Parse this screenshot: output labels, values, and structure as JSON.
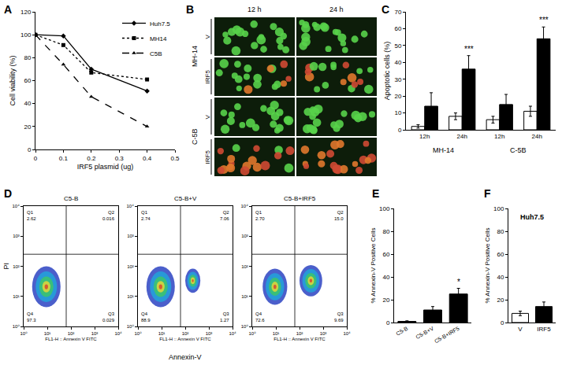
{
  "chart_data": [
    {
      "panel_label": "A",
      "type": "line",
      "x": [
        0,
        0.1,
        0.2,
        0.4
      ],
      "xlabel": "IRF5 plasmid (ug)",
      "ylabel": "Cell viability (%)",
      "xlim": [
        0,
        0.5
      ],
      "xticks": [
        0,
        0.1,
        0.2,
        0.3,
        0.4,
        0.5
      ],
      "ylim": [
        0,
        120
      ],
      "yticks": [
        0,
        20,
        40,
        60,
        80,
        100,
        120
      ],
      "legend": "upper right",
      "series": [
        {
          "name": "Huh7.5",
          "color": "#000000",
          "values": [
            100,
            99,
            70,
            51
          ],
          "line_style": "solid",
          "marker": "diamond"
        },
        {
          "name": "MH14",
          "color": "#000000",
          "values": [
            100,
            91,
            67,
            61
          ],
          "line_style": "dot",
          "marker": "square"
        },
        {
          "name": "C5B",
          "color": "#000000",
          "values": [
            100,
            74,
            46,
            20
          ],
          "line_style": "dash",
          "marker": "triangle-up"
        }
      ]
    },
    {
      "panel_label": "C",
      "type": "bar",
      "categories": [
        "12h",
        "24h",
        "12h",
        "24h"
      ],
      "groups": [
        "MH-14",
        "MH-14",
        "C-5B",
        "C-5B"
      ],
      "ylabel": "Apoptotic cells (%)",
      "ylim": [
        0,
        70
      ],
      "yticks": [
        0,
        10,
        20,
        30,
        40,
        50,
        60,
        70
      ],
      "series": [
        {
          "color": "#ffffff",
          "values": [
            2,
            8,
            6,
            11
          ],
          "errors": [
            1,
            2,
            2,
            3
          ]
        },
        {
          "color": "#000000",
          "values": [
            14,
            36,
            15,
            54
          ],
          "errors": [
            8,
            8,
            6,
            7
          ]
        }
      ],
      "annotations": [
        {
          "index": 1,
          "text": "***"
        },
        {
          "index": 3,
          "text": "***"
        }
      ]
    },
    {
      "panel_label": "D",
      "type": "scatter",
      "log": true,
      "xlabel": "Annexin-V",
      "ylabel": "PI",
      "xlim": [
        1,
        10000
      ],
      "ylim": [
        1,
        10000
      ],
      "xticks": [
        {
          "value": 1,
          "label": "10⁰"
        },
        {
          "value": 10,
          "label": "10¹"
        },
        {
          "value": 100,
          "label": "10²"
        },
        {
          "value": 1000,
          "label": "10³"
        },
        {
          "value": 10000,
          "label": "10⁴"
        }
      ],
      "yticks": [
        {
          "value": 1,
          "label": "10⁰"
        },
        {
          "value": 10,
          "label": "10¹"
        },
        {
          "value": 100,
          "label": "10²"
        },
        {
          "value": 1000,
          "label": "10³"
        },
        {
          "value": 10000,
          "label": "10⁴"
        }
      ],
      "plots": [
        {
          "title": "C5-B",
          "axis_label": "FL1-H :: Annexin V FITC",
          "quadrants": [
            {
              "name": "Q1",
              "value": 2.62
            },
            {
              "name": "Q2",
              "value": 0.016
            },
            {
              "name": "Q3",
              "value": 0.029
            },
            {
              "name": "Q4",
              "value": 97.3
            }
          ]
        },
        {
          "title": "C5-B+V",
          "axis_label": "FL1-H :: Annexin V FITC",
          "quadrants": [
            {
              "name": "Q1",
              "value": 2.74
            },
            {
              "name": "Q2",
              "value": 7.06
            },
            {
              "name": "Q3",
              "value": 1.27
            },
            {
              "name": "Q4",
              "value": 88.9
            }
          ]
        },
        {
          "title": "C5-B+IRF5",
          "axis_label": "FL1-H :: Annexin V FITC",
          "quadrants": [
            {
              "name": "Q1",
              "value": 2.7,
              "label": "2.70"
            },
            {
              "name": "Q2",
              "value": 15.0,
              "label": "15.0"
            },
            {
              "name": "Q3",
              "value": 9.69
            },
            {
              "name": "Q4",
              "value": 72.6
            }
          ]
        }
      ]
    },
    {
      "panel_label": "E",
      "type": "bar",
      "categories": [
        "C5-B",
        "C5-B+V",
        "C5-B+IRF5"
      ],
      "ylabel": "% Annexin-V Positive Cells",
      "ylim": [
        0,
        100
      ],
      "yticks": [
        0,
        20,
        40,
        60,
        80,
        100
      ],
      "color": "#000000",
      "values": [
        1,
        11,
        25
      ],
      "errors": [
        0.5,
        3,
        5
      ],
      "annotations": [
        {
          "index": 2,
          "text": "*"
        }
      ]
    },
    {
      "panel_label": "F",
      "type": "bar",
      "title": "Huh7.5",
      "categories": [
        "V",
        "IRF5"
      ],
      "ylabel": "% Annexin-V Positive Cells",
      "ylim": [
        0,
        100
      ],
      "yticks": [
        0,
        20,
        40,
        60,
        80,
        100
      ],
      "colors": [
        "#ffffff",
        "#000000"
      ],
      "values": [
        8,
        14
      ],
      "errors": [
        2,
        4
      ]
    }
  ],
  "micrographs": {
    "panel_label": "B",
    "columns": [
      "12 h",
      "24 h"
    ],
    "groups": [
      {
        "name": "MH-14",
        "rows": [
          "V",
          "IRF5"
        ]
      },
      {
        "name": "C-5B",
        "rows": [
          "V",
          "IRF5"
        ]
      }
    ]
  }
}
